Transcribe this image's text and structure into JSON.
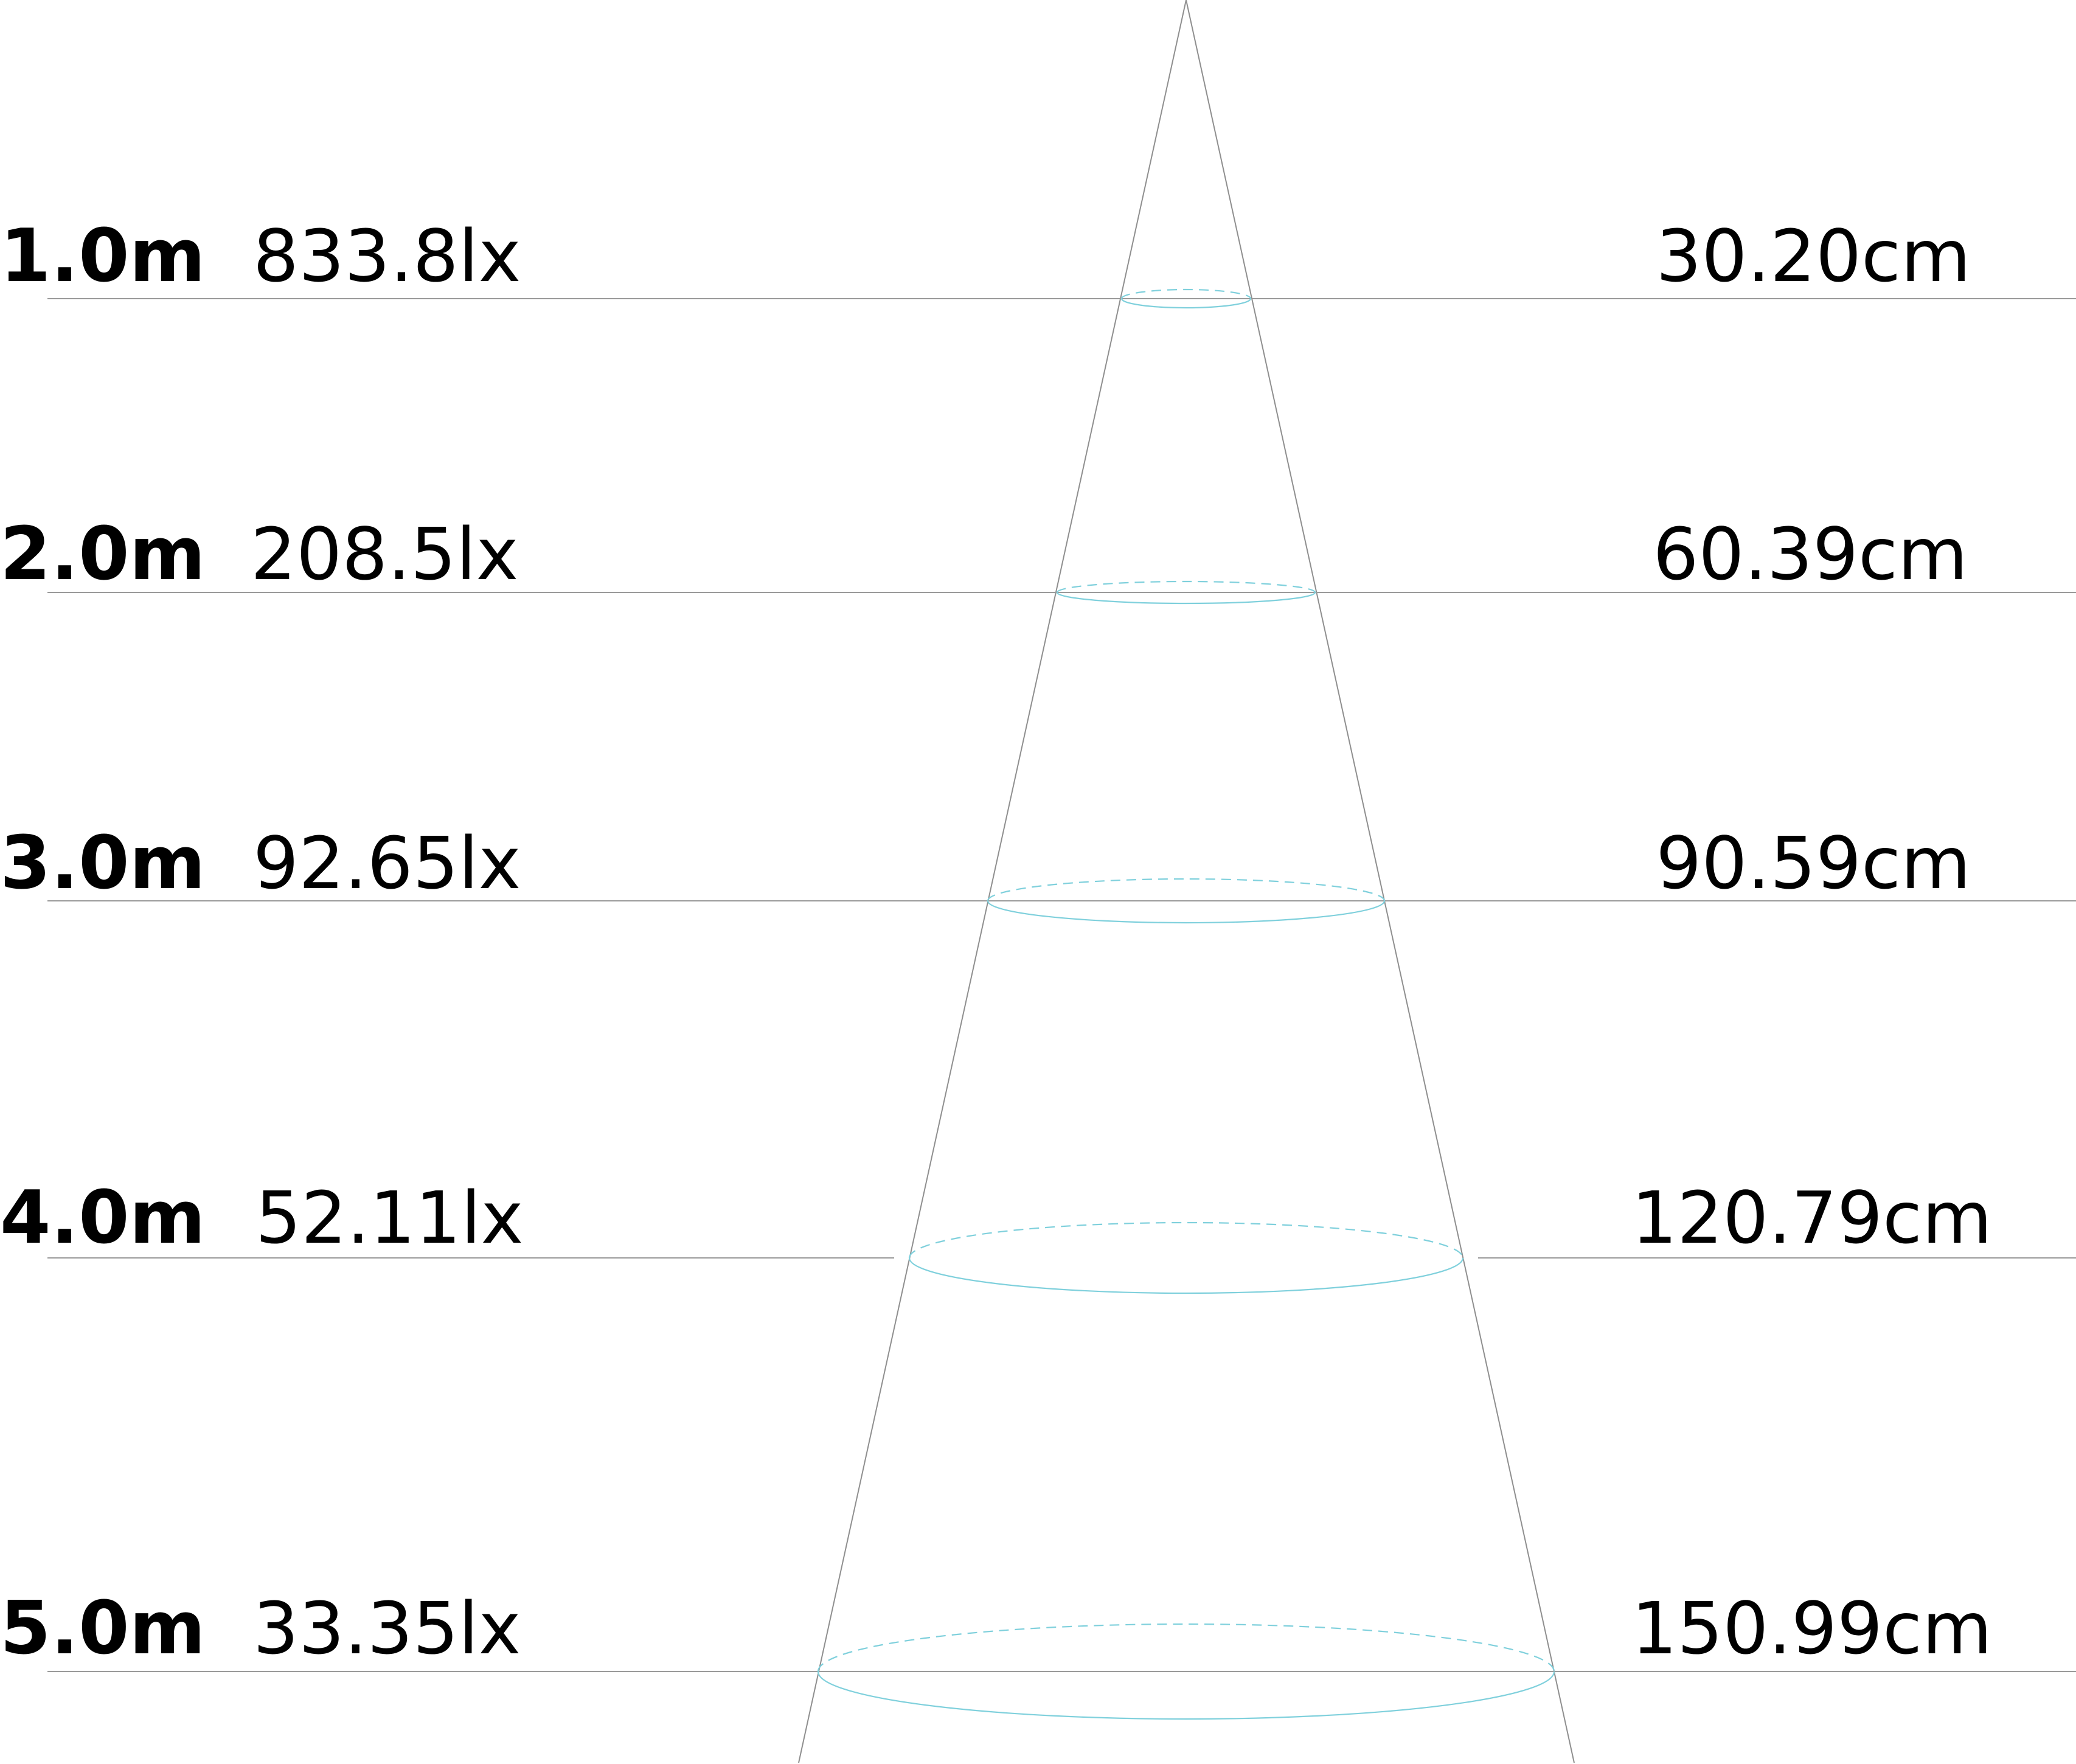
{
  "rows": [
    {
      "distance": "1.0m",
      "illuminance": "833.8lx",
      "diameter": "30.20cm"
    },
    {
      "distance": "2.0m",
      "illuminance": "208.5lx",
      "diameter": "60.39cm"
    },
    {
      "distance": "3.0m",
      "illuminance": "92.65lx",
      "diameter": "90.59cm"
    },
    {
      "distance": "4.0m",
      "illuminance": "52.11lx",
      "diameter": "120.79cm"
    },
    {
      "distance": "5.0m",
      "illuminance": "33.35lx",
      "diameter": "150.99cm"
    }
  ],
  "colors": {
    "rule": "#9a9a9a",
    "cone": "#8f8f8f",
    "spot": "#7fd0dc",
    "text": "#000000"
  }
}
